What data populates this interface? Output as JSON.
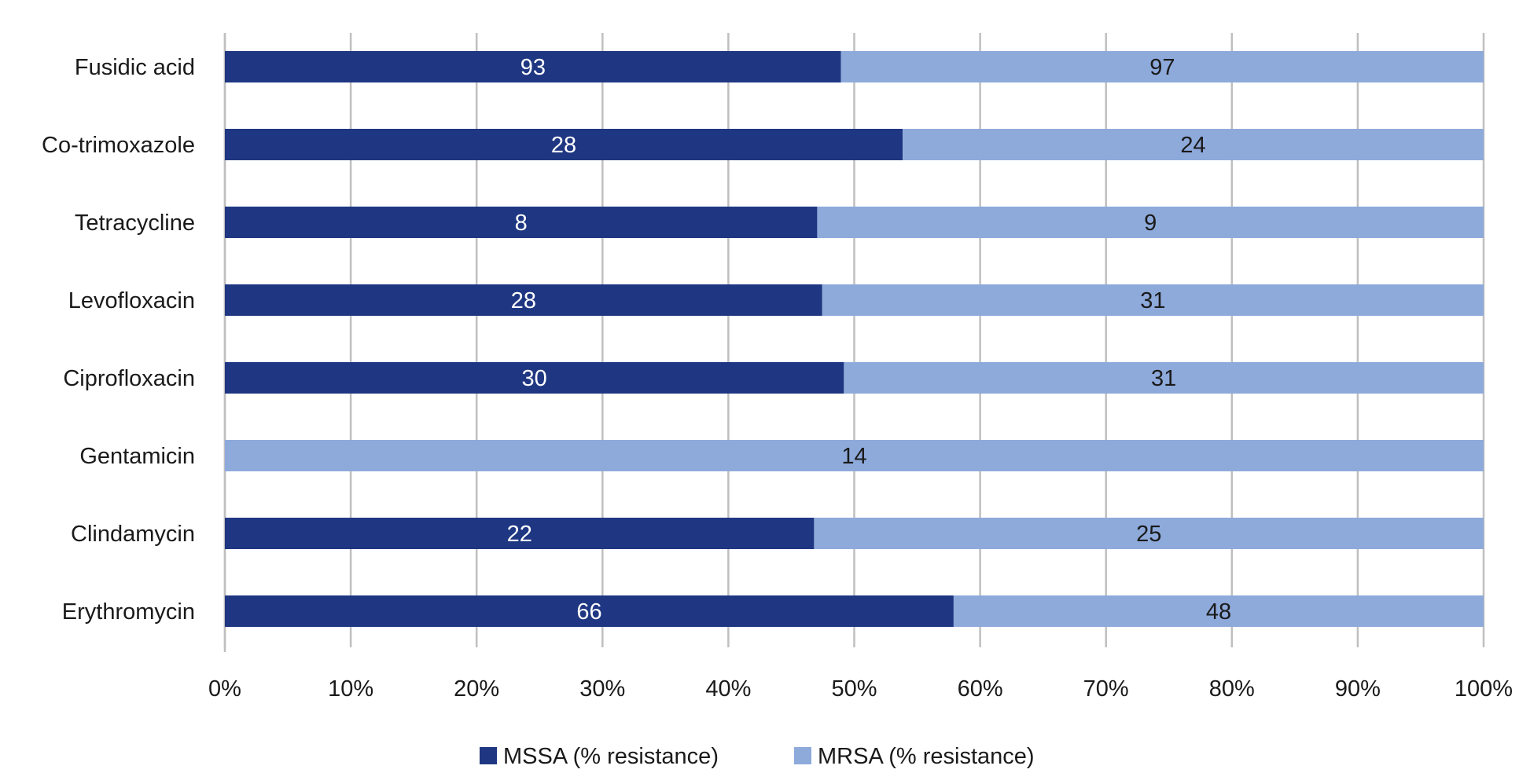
{
  "chart_data": {
    "type": "bar",
    "orientation": "horizontal",
    "stacking": "percent",
    "title": "",
    "xlabel": "",
    "ylabel": "",
    "categories": [
      "Fusidic acid",
      "Co-trimoxazole",
      "Tetracycline",
      "Levofloxacin",
      "Ciprofloxacin",
      "Gentamicin",
      "Clindamycin",
      "Erythromycin"
    ],
    "series": [
      {
        "name": "MSSA (% resistance)",
        "color": "#1f3782",
        "label_color": "#ffffff",
        "values": [
          93,
          28,
          8,
          28,
          30,
          0,
          22,
          66
        ]
      },
      {
        "name": "MRSA (% resistance)",
        "color": "#8eaadb",
        "label_color": "#1a1a1a",
        "values": [
          97,
          24,
          9,
          31,
          31,
          14,
          25,
          48
        ]
      }
    ],
    "x_ticks": [
      "0%",
      "10%",
      "20%",
      "30%",
      "40%",
      "50%",
      "60%",
      "70%",
      "80%",
      "90%",
      "100%"
    ],
    "xlim": [
      0,
      100
    ],
    "grid": "vertical",
    "legend": "bottom"
  }
}
